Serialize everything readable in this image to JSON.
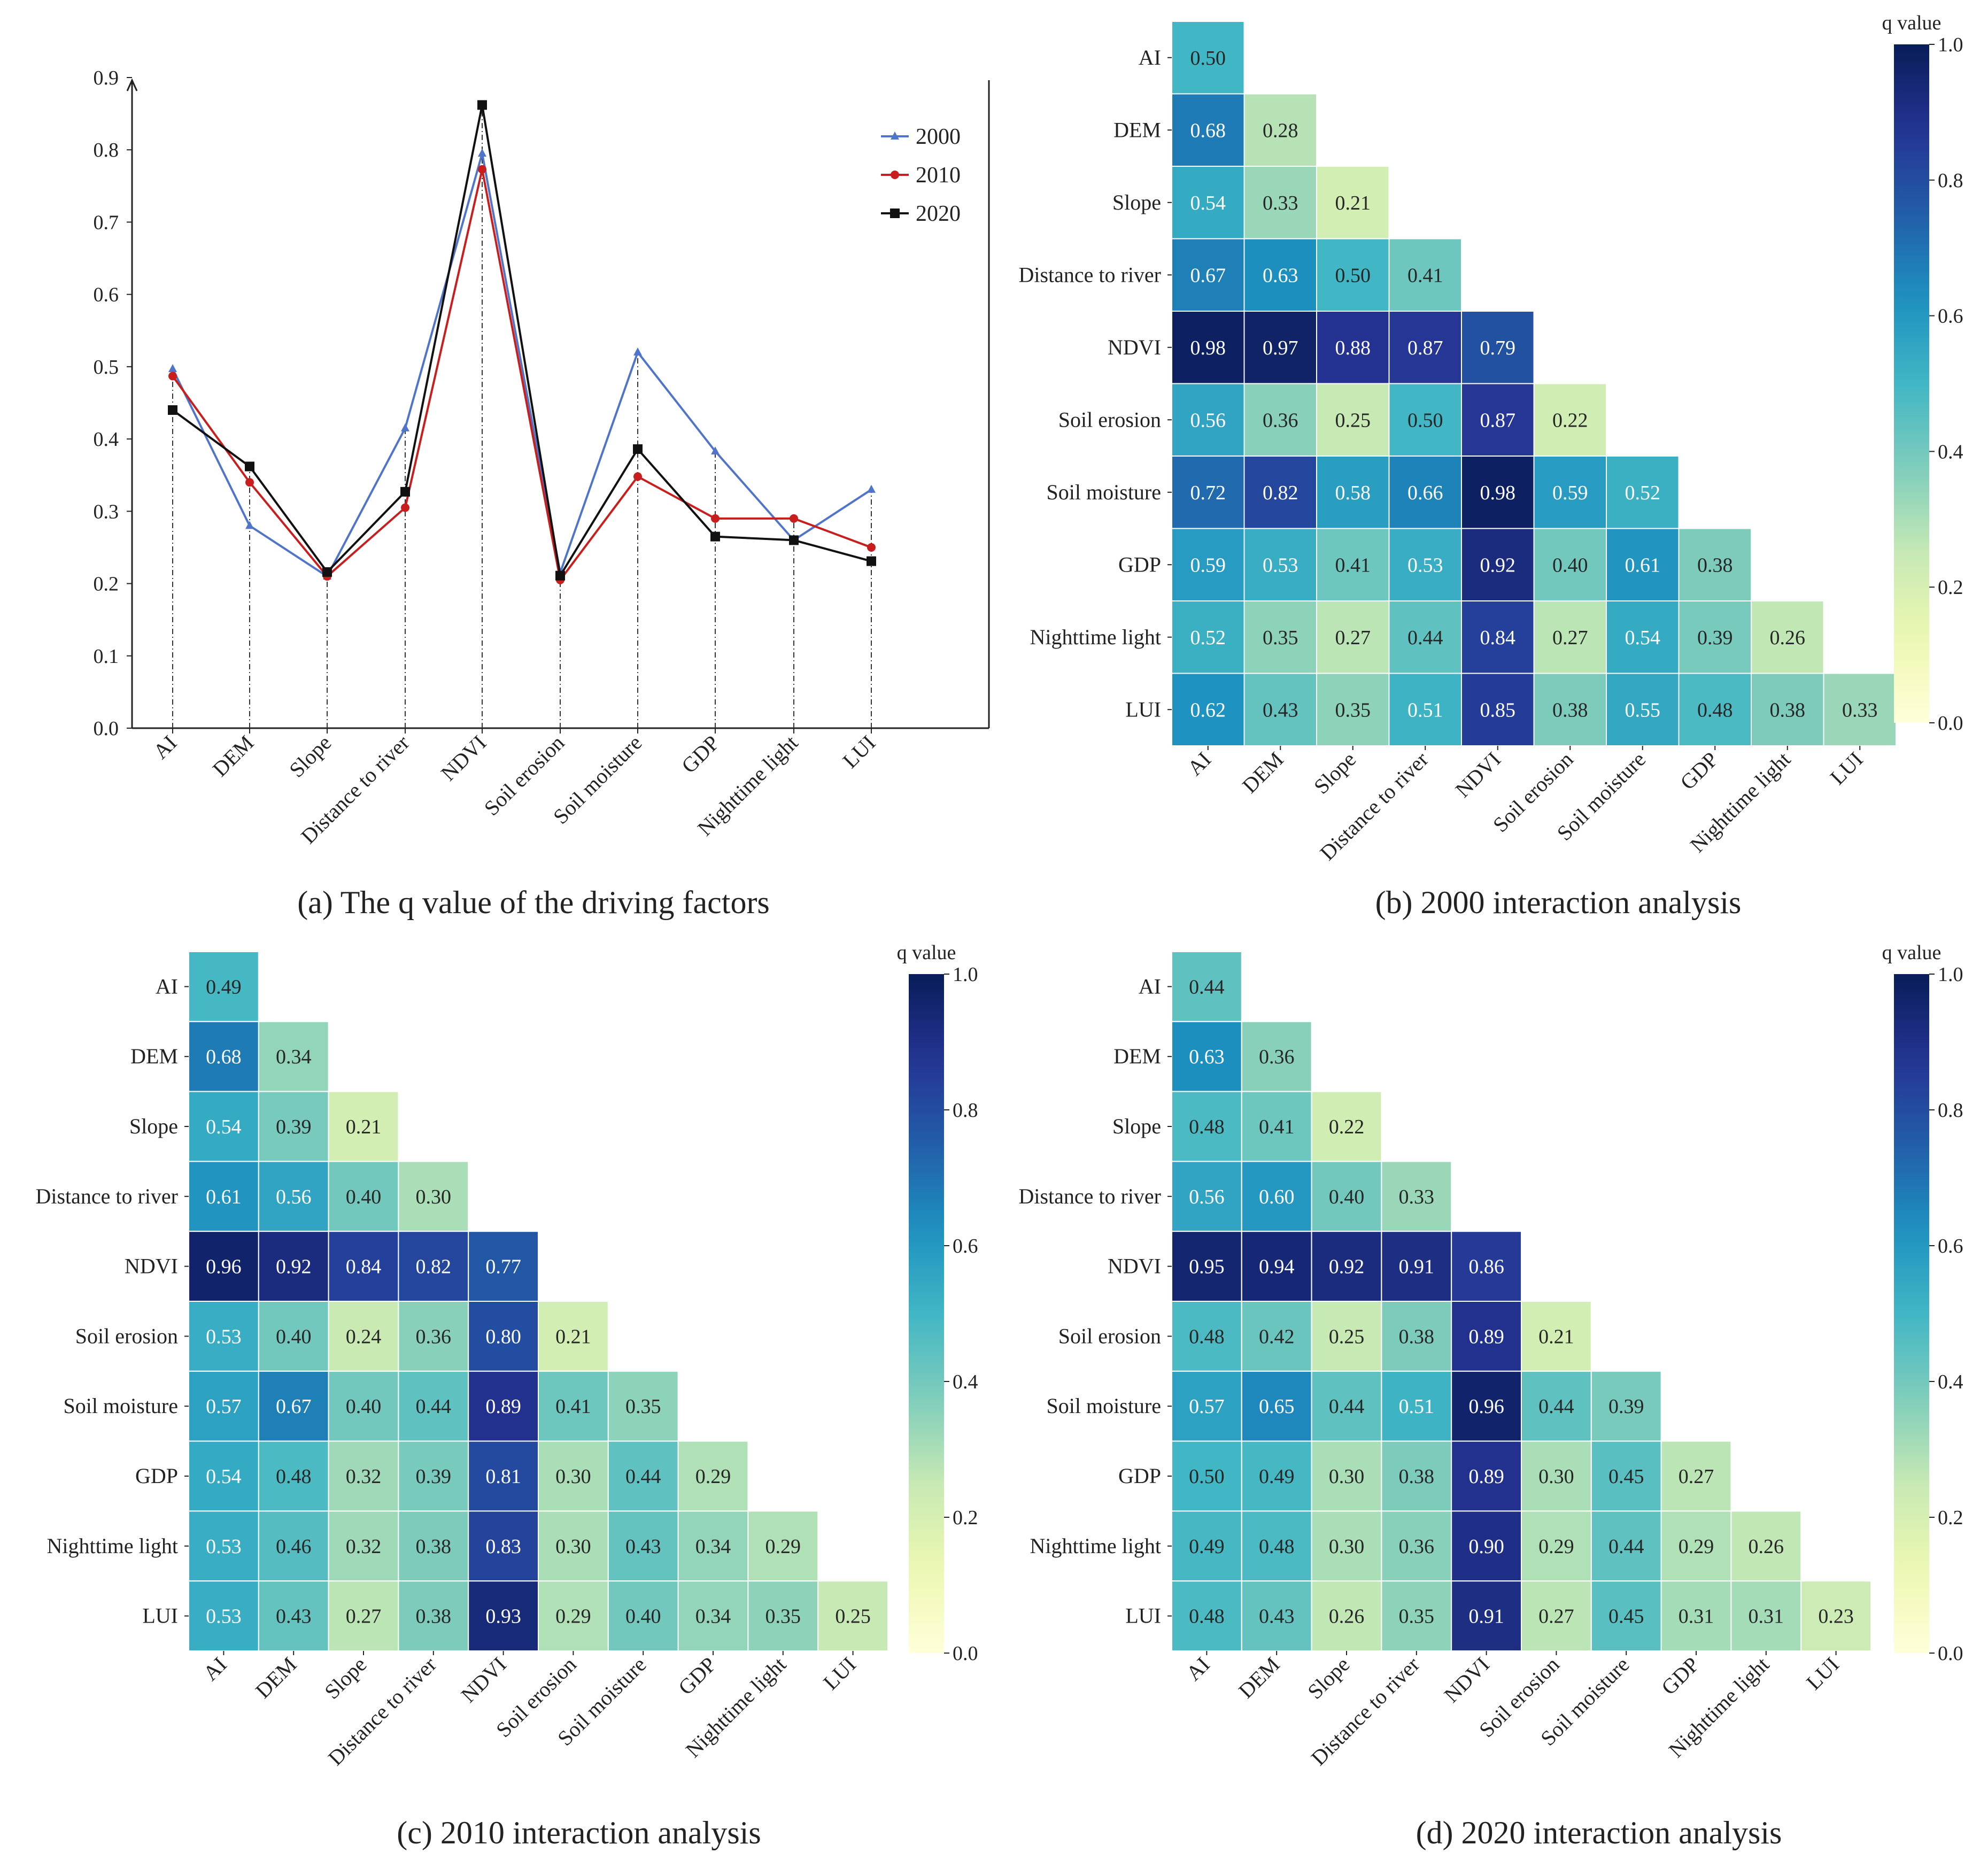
{
  "chart_data": [
    {
      "type": "line",
      "caption": "(a) The q value of the driving factors",
      "categories": [
        "AI",
        "DEM",
        "Slope",
        "Distance to river",
        "NDVI",
        "Soil erosion",
        "Soil moisture",
        "GDP",
        "Nighttime light",
        "LUI"
      ],
      "ylim": [
        0,
        0.9
      ],
      "yticks": [
        "0.0",
        "0.1",
        "0.2",
        "0.3",
        "0.4",
        "0.5",
        "0.6",
        "0.7",
        "0.8",
        "0.9"
      ],
      "legend_position": "top-right",
      "series": [
        {
          "name": "2000",
          "marker": "triangle",
          "color": "#4f74c9",
          "values": [
            0.497,
            0.28,
            0.21,
            0.415,
            0.795,
            0.215,
            0.52,
            0.383,
            0.26,
            0.33
          ]
        },
        {
          "name": "2010",
          "marker": "circle",
          "color": "#c81e1e",
          "values": [
            0.487,
            0.34,
            0.21,
            0.305,
            0.773,
            0.205,
            0.348,
            0.29,
            0.29,
            0.25
          ]
        },
        {
          "name": "2020",
          "marker": "square",
          "color": "#111111",
          "values": [
            0.44,
            0.362,
            0.216,
            0.327,
            0.862,
            0.211,
            0.386,
            0.265,
            0.26,
            0.231
          ]
        }
      ]
    },
    {
      "type": "heatmap",
      "caption": "(b) 2000 interaction analysis",
      "labels": [
        "AI",
        "DEM",
        "Slope",
        "Distance to river",
        "NDVI",
        "Soil erosion",
        "Soil moisture",
        "GDP",
        "Nighttime light",
        "LUI"
      ],
      "colorbar": {
        "title": "q value",
        "min": 0,
        "max": 1,
        "ticks": [
          "0.0",
          "0.2",
          "0.4",
          "0.6",
          "0.8",
          "1.0"
        ]
      },
      "rows": [
        [
          "0.50"
        ],
        [
          "0.68",
          "0.28"
        ],
        [
          "0.54",
          "0.33",
          "0.21"
        ],
        [
          "0.67",
          "0.63",
          "0.50",
          "0.41"
        ],
        [
          "0.98",
          "0.97",
          "0.88",
          "0.87",
          "0.79"
        ],
        [
          "0.56",
          "0.36",
          "0.25",
          "0.50",
          "0.87",
          "0.22"
        ],
        [
          "0.72",
          "0.82",
          "0.58",
          "0.66",
          "0.98",
          "0.59",
          "0.52"
        ],
        [
          "0.59",
          "0.53",
          "0.41",
          "0.53",
          "0.92",
          "0.40",
          "0.61",
          "0.38"
        ],
        [
          "0.52",
          "0.35",
          "0.27",
          "0.44",
          "0.84",
          "0.27",
          "0.54",
          "0.39",
          "0.26"
        ],
        [
          "0.62",
          "0.43",
          "0.35",
          "0.51",
          "0.85",
          "0.38",
          "0.55",
          "0.48",
          "0.38",
          "0.33"
        ]
      ]
    },
    {
      "type": "heatmap",
      "caption": "(c) 2010 interaction analysis",
      "labels": [
        "AI",
        "DEM",
        "Slope",
        "Distance to river",
        "NDVI",
        "Soil erosion",
        "Soil moisture",
        "GDP",
        "Nighttime light",
        "LUI"
      ],
      "colorbar": {
        "title": "q value",
        "min": 0,
        "max": 1,
        "ticks": [
          "0.0",
          "0.2",
          "0.4",
          "0.6",
          "0.8",
          "1.0"
        ]
      },
      "rows": [
        [
          "0.49"
        ],
        [
          "0.68",
          "0.34"
        ],
        [
          "0.54",
          "0.39",
          "0.21"
        ],
        [
          "0.61",
          "0.56",
          "0.40",
          "0.30"
        ],
        [
          "0.96",
          "0.92",
          "0.84",
          "0.82",
          "0.77"
        ],
        [
          "0.53",
          "0.40",
          "0.24",
          "0.36",
          "0.80",
          "0.21"
        ],
        [
          "0.57",
          "0.67",
          "0.40",
          "0.44",
          "0.89",
          "0.41",
          "0.35"
        ],
        [
          "0.54",
          "0.48",
          "0.32",
          "0.39",
          "0.81",
          "0.30",
          "0.44",
          "0.29"
        ],
        [
          "0.53",
          "0.46",
          "0.32",
          "0.38",
          "0.83",
          "0.30",
          "0.43",
          "0.34",
          "0.29"
        ],
        [
          "0.53",
          "0.43",
          "0.27",
          "0.38",
          "0.93",
          "0.29",
          "0.40",
          "0.34",
          "0.35",
          "0.25"
        ]
      ]
    },
    {
      "type": "heatmap",
      "caption": "(d) 2020 interaction analysis",
      "labels": [
        "AI",
        "DEM",
        "Slope",
        "Distance to river",
        "NDVI",
        "Soil erosion",
        "Soil moisture",
        "GDP",
        "Nighttime light",
        "LUI"
      ],
      "colorbar": {
        "title": "q value",
        "min": 0,
        "max": 1,
        "ticks": [
          "0.0",
          "0.2",
          "0.4",
          "0.6",
          "0.8",
          "1.0"
        ]
      },
      "rows": [
        [
          "0.44"
        ],
        [
          "0.63",
          "0.36"
        ],
        [
          "0.48",
          "0.41",
          "0.22"
        ],
        [
          "0.56",
          "0.60",
          "0.40",
          "0.33"
        ],
        [
          "0.95",
          "0.94",
          "0.92",
          "0.91",
          "0.86"
        ],
        [
          "0.48",
          "0.42",
          "0.25",
          "0.38",
          "0.89",
          "0.21"
        ],
        [
          "0.57",
          "0.65",
          "0.44",
          "0.51",
          "0.96",
          "0.44",
          "0.39"
        ],
        [
          "0.50",
          "0.49",
          "0.30",
          "0.38",
          "0.89",
          "0.30",
          "0.45",
          "0.27"
        ],
        [
          "0.49",
          "0.48",
          "0.30",
          "0.36",
          "0.90",
          "0.29",
          "0.44",
          "0.29",
          "0.26"
        ],
        [
          "0.48",
          "0.43",
          "0.26",
          "0.35",
          "0.91",
          "0.27",
          "0.45",
          "0.31",
          "0.31",
          "0.23"
        ]
      ]
    }
  ]
}
